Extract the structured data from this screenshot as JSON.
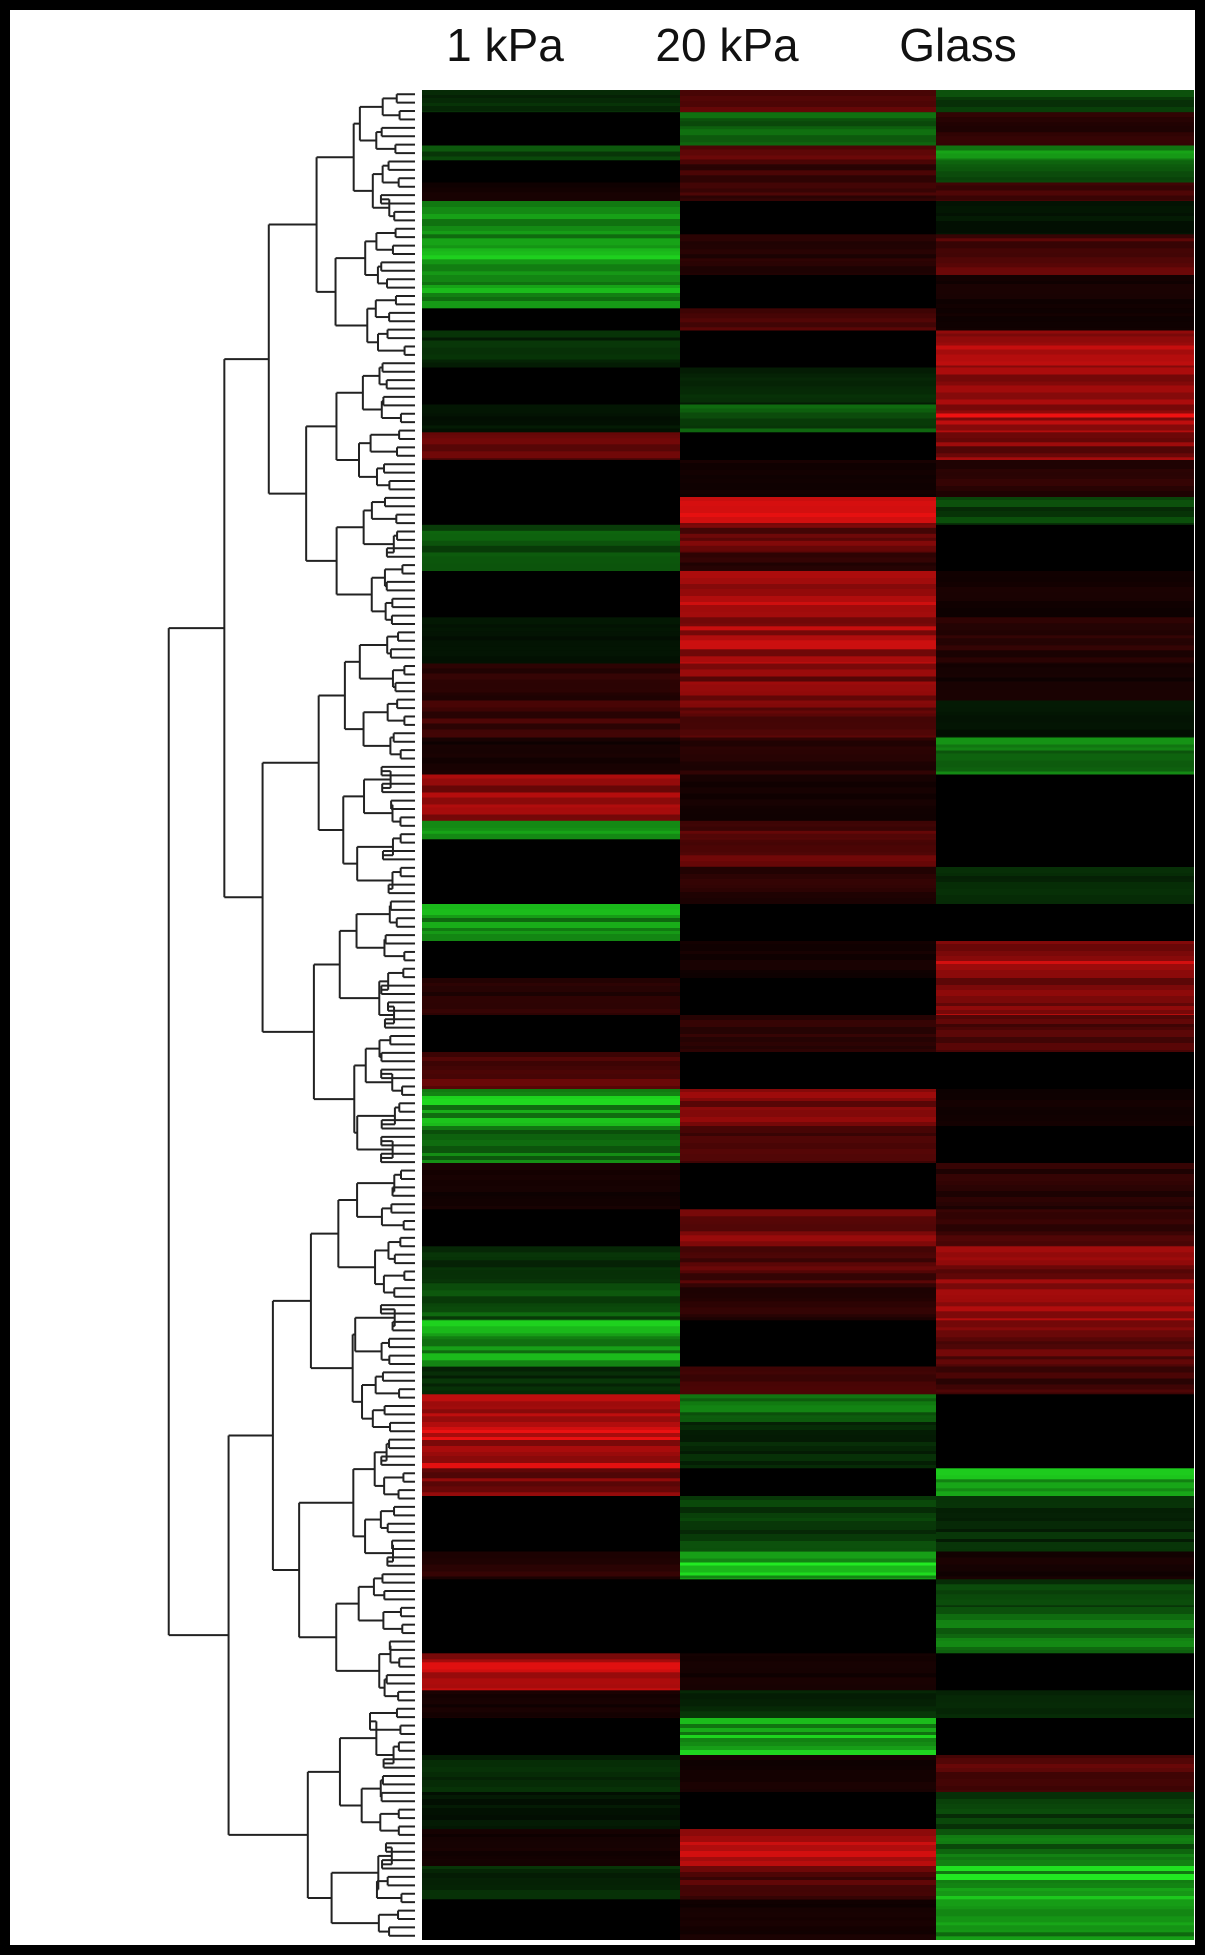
{
  "chart_data": {
    "type": "heatmap",
    "title": "",
    "columns": [
      "1 kPa",
      "20 kPa",
      "Glass"
    ],
    "color_scale": {
      "low": "#22ee22",
      "mid": "#000000",
      "high": "#ee1111"
    },
    "value_range": [
      -1,
      1
    ],
    "dendrogram": "rows",
    "blocks": [
      {
        "start": 0.0,
        "end": 0.012,
        "values": [
          -0.2,
          0.5,
          -0.3
        ]
      },
      {
        "start": 0.012,
        "end": 0.03,
        "values": [
          0.0,
          -0.5,
          0.2
        ]
      },
      {
        "start": 0.03,
        "end": 0.038,
        "values": [
          -0.4,
          0.4,
          -0.6
        ]
      },
      {
        "start": 0.038,
        "end": 0.05,
        "values": [
          0.0,
          0.3,
          -0.5
        ]
      },
      {
        "start": 0.05,
        "end": 0.06,
        "values": [
          0.1,
          0.3,
          0.3
        ]
      },
      {
        "start": 0.06,
        "end": 0.078,
        "values": [
          -0.6,
          0.0,
          -0.1
        ]
      },
      {
        "start": 0.078,
        "end": 0.1,
        "values": [
          -0.8,
          0.2,
          0.4
        ]
      },
      {
        "start": 0.1,
        "end": 0.118,
        "values": [
          -0.7,
          0.0,
          0.1
        ]
      },
      {
        "start": 0.118,
        "end": 0.13,
        "values": [
          0.0,
          0.4,
          0.1
        ]
      },
      {
        "start": 0.13,
        "end": 0.15,
        "values": [
          -0.2,
          0.0,
          0.8
        ]
      },
      {
        "start": 0.15,
        "end": 0.17,
        "values": [
          0.0,
          -0.2,
          0.7
        ]
      },
      {
        "start": 0.17,
        "end": 0.185,
        "values": [
          -0.1,
          -0.4,
          0.9
        ]
      },
      {
        "start": 0.185,
        "end": 0.2,
        "values": [
          0.5,
          0.0,
          0.6
        ]
      },
      {
        "start": 0.2,
        "end": 0.22,
        "values": [
          0.0,
          0.1,
          0.2
        ]
      },
      {
        "start": 0.22,
        "end": 0.235,
        "values": [
          0.0,
          0.9,
          -0.3
        ]
      },
      {
        "start": 0.235,
        "end": 0.25,
        "values": [
          -0.4,
          0.5,
          0.0
        ]
      },
      {
        "start": 0.25,
        "end": 0.26,
        "values": [
          -0.6,
          0.2,
          0.0
        ]
      },
      {
        "start": 0.26,
        "end": 0.285,
        "values": [
          0.0,
          0.85,
          0.1
        ]
      },
      {
        "start": 0.285,
        "end": 0.31,
        "values": [
          -0.1,
          0.75,
          0.2
        ]
      },
      {
        "start": 0.31,
        "end": 0.33,
        "values": [
          0.2,
          0.6,
          0.1
        ]
      },
      {
        "start": 0.33,
        "end": 0.35,
        "values": [
          0.3,
          0.5,
          -0.1
        ]
      },
      {
        "start": 0.35,
        "end": 0.37,
        "values": [
          0.1,
          0.2,
          -0.6
        ]
      },
      {
        "start": 0.37,
        "end": 0.395,
        "values": [
          0.7,
          0.1,
          0.0
        ]
      },
      {
        "start": 0.395,
        "end": 0.405,
        "values": [
          -0.8,
          0.4,
          0.0
        ]
      },
      {
        "start": 0.405,
        "end": 0.42,
        "values": [
          0.0,
          0.5,
          0.0
        ]
      },
      {
        "start": 0.42,
        "end": 0.44,
        "values": [
          0.0,
          0.2,
          -0.2
        ]
      },
      {
        "start": 0.44,
        "end": 0.46,
        "values": [
          -0.7,
          0.0,
          0.0
        ]
      },
      {
        "start": 0.46,
        "end": 0.48,
        "values": [
          0.0,
          0.1,
          0.8
        ]
      },
      {
        "start": 0.48,
        "end": 0.5,
        "values": [
          0.2,
          0.0,
          0.7
        ]
      },
      {
        "start": 0.5,
        "end": 0.52,
        "values": [
          0.0,
          0.2,
          0.4
        ]
      },
      {
        "start": 0.52,
        "end": 0.54,
        "values": [
          0.4,
          0.0,
          0.0
        ]
      },
      {
        "start": 0.54,
        "end": 0.56,
        "values": [
          -0.8,
          0.6,
          0.1
        ]
      },
      {
        "start": 0.56,
        "end": 0.58,
        "values": [
          -0.6,
          0.4,
          0.0
        ]
      },
      {
        "start": 0.58,
        "end": 0.605,
        "values": [
          0.1,
          0.0,
          0.2
        ]
      },
      {
        "start": 0.605,
        "end": 0.625,
        "values": [
          0.0,
          0.6,
          0.3
        ]
      },
      {
        "start": 0.625,
        "end": 0.645,
        "values": [
          -0.2,
          0.4,
          0.6
        ]
      },
      {
        "start": 0.645,
        "end": 0.665,
        "values": [
          -0.4,
          0.2,
          0.7
        ]
      },
      {
        "start": 0.665,
        "end": 0.69,
        "values": [
          -0.8,
          0.0,
          0.5
        ]
      },
      {
        "start": 0.69,
        "end": 0.705,
        "values": [
          -0.2,
          0.3,
          0.3
        ]
      },
      {
        "start": 0.705,
        "end": 0.72,
        "values": [
          0.8,
          -0.6,
          0.0
        ]
      },
      {
        "start": 0.72,
        "end": 0.745,
        "values": [
          0.9,
          -0.2,
          0.0
        ]
      },
      {
        "start": 0.745,
        "end": 0.76,
        "values": [
          0.6,
          0.0,
          -0.8
        ]
      },
      {
        "start": 0.76,
        "end": 0.79,
        "values": [
          0.0,
          -0.3,
          -0.2
        ]
      },
      {
        "start": 0.79,
        "end": 0.805,
        "values": [
          0.2,
          -0.9,
          0.1
        ]
      },
      {
        "start": 0.805,
        "end": 0.82,
        "values": [
          0.0,
          0.0,
          -0.3
        ]
      },
      {
        "start": 0.82,
        "end": 0.845,
        "values": [
          0.0,
          0.0,
          -0.5
        ]
      },
      {
        "start": 0.845,
        "end": 0.865,
        "values": [
          0.9,
          0.1,
          0.0
        ]
      },
      {
        "start": 0.865,
        "end": 0.88,
        "values": [
          0.1,
          -0.2,
          -0.2
        ]
      },
      {
        "start": 0.88,
        "end": 0.9,
        "values": [
          0.0,
          -0.8,
          0.0
        ]
      },
      {
        "start": 0.9,
        "end": 0.92,
        "values": [
          -0.2,
          0.1,
          0.4
        ]
      },
      {
        "start": 0.92,
        "end": 0.94,
        "values": [
          -0.1,
          0.0,
          -0.3
        ]
      },
      {
        "start": 0.94,
        "end": 0.96,
        "values": [
          0.1,
          0.8,
          -0.5
        ]
      },
      {
        "start": 0.96,
        "end": 0.978,
        "values": [
          -0.2,
          0.4,
          -0.9
        ]
      },
      {
        "start": 0.978,
        "end": 1.0,
        "values": [
          0.0,
          0.1,
          -0.7
        ]
      }
    ]
  }
}
